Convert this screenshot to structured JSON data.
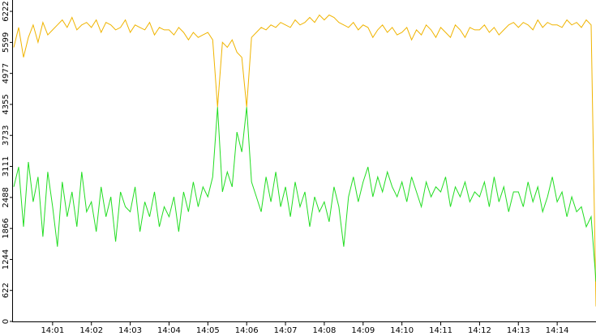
{
  "chart_data": {
    "type": "line",
    "x": [
      0,
      0.125,
      0.25,
      0.375,
      0.5,
      0.625,
      0.75,
      0.875,
      1,
      1.125,
      1.25,
      1.375,
      1.5,
      1.625,
      1.75,
      1.875,
      2,
      2.125,
      2.25,
      2.375,
      2.5,
      2.625,
      2.75,
      2.875,
      3,
      3.125,
      3.25,
      3.375,
      3.5,
      3.625,
      3.75,
      3.875,
      4,
      4.125,
      4.25,
      4.375,
      4.5,
      4.625,
      4.75,
      4.875,
      5,
      5.125,
      5.25,
      5.375,
      5.5,
      5.625,
      5.75,
      5.875,
      6,
      6.125,
      6.25,
      6.375,
      6.5,
      6.625,
      6.75,
      6.875,
      7,
      7.125,
      7.25,
      7.375,
      7.5,
      7.625,
      7.75,
      7.875,
      8,
      8.125,
      8.25,
      8.375,
      8.5,
      8.625,
      8.75,
      8.875,
      9,
      9.125,
      9.25,
      9.375,
      9.5,
      9.625,
      9.75,
      9.875,
      10,
      10.125,
      10.25,
      10.375,
      10.5,
      10.625,
      10.75,
      10.875,
      11,
      11.125,
      11.25,
      11.375,
      11.5,
      11.625,
      11.75,
      11.875,
      12,
      12.125,
      12.25,
      12.375,
      12.5,
      12.625,
      12.75,
      12.875,
      13,
      13.125,
      13.25,
      13.375,
      13.5,
      13.625,
      13.75,
      13.875,
      14,
      14.125,
      14.25,
      14.375,
      14.5,
      14.625,
      14.75,
      14.875,
      15
    ],
    "series": [
      {
        "color": "#f0b400",
        "values": [
          5500,
          5900,
          5300,
          5700,
          5950,
          5600,
          6000,
          5750,
          5850,
          5950,
          6050,
          5900,
          6100,
          5850,
          5950,
          6000,
          5900,
          6050,
          5800,
          6000,
          5950,
          5850,
          5900,
          6050,
          5800,
          5950,
          5900,
          5850,
          6000,
          5750,
          5900,
          5850,
          5850,
          5750,
          5900,
          5800,
          5650,
          5800,
          5700,
          5750,
          5800,
          5650,
          4300,
          5600,
          5500,
          5650,
          5400,
          5300,
          4300,
          5700,
          5800,
          5900,
          5850,
          5950,
          5900,
          6000,
          5950,
          5900,
          6050,
          5950,
          6000,
          6100,
          6000,
          6150,
          6050,
          6150,
          6100,
          6000,
          5950,
          5900,
          6000,
          5850,
          5950,
          5900,
          5700,
          5850,
          5950,
          5800,
          5900,
          5750,
          5800,
          5900,
          5650,
          5850,
          5750,
          5950,
          5850,
          5700,
          5900,
          5800,
          5700,
          5950,
          5850,
          5700,
          5900,
          5850,
          5850,
          5950,
          5800,
          5900,
          5750,
          5850,
          5950,
          6000,
          5900,
          6000,
          5950,
          5850,
          6050,
          5900,
          6000,
          5950,
          5950,
          5900,
          6050,
          5950,
          6000,
          5900,
          6050,
          5950,
          300
        ]
      },
      {
        "color": "#22dd22",
        "values": [
          2700,
          3100,
          1900,
          3200,
          2400,
          2900,
          1700,
          3000,
          2300,
          1500,
          2800,
          2100,
          2600,
          1900,
          3000,
          2200,
          2400,
          1800,
          2700,
          2100,
          2500,
          1600,
          2600,
          2300,
          2200,
          2700,
          1800,
          2400,
          2100,
          2600,
          1900,
          2300,
          2100,
          2500,
          1800,
          2600,
          2200,
          2800,
          2300,
          2700,
          2500,
          2900,
          4300,
          2600,
          3000,
          2700,
          3800,
          3400,
          4300,
          2800,
          2500,
          2200,
          2900,
          2400,
          3000,
          2300,
          2700,
          2100,
          2800,
          2300,
          2600,
          1900,
          2500,
          2200,
          2400,
          2000,
          2700,
          2300,
          1500,
          2500,
          2900,
          2400,
          2800,
          3100,
          2500,
          2900,
          2600,
          3000,
          2700,
          2500,
          2800,
          2400,
          2900,
          2600,
          2300,
          2800,
          2500,
          2700,
          2600,
          2900,
          2300,
          2700,
          2500,
          2800,
          2400,
          2600,
          2500,
          2800,
          2300,
          2900,
          2400,
          2700,
          2200,
          2600,
          2600,
          2300,
          2800,
          2400,
          2700,
          2200,
          2500,
          2900,
          2400,
          2600,
          2100,
          2500,
          2200,
          2300,
          1900,
          2100,
          800
        ]
      }
    ],
    "xlim": [
      0,
      15
    ],
    "xticks": [
      {
        "value": 1,
        "label": "14:01"
      },
      {
        "value": 2,
        "label": "14:02"
      },
      {
        "value": 3,
        "label": "14:03"
      },
      {
        "value": 4,
        "label": "14:04"
      },
      {
        "value": 5,
        "label": "14:05"
      },
      {
        "value": 6,
        "label": "14:06"
      },
      {
        "value": 7,
        "label": "14:07"
      },
      {
        "value": 8,
        "label": "14:08"
      },
      {
        "value": 9,
        "label": "14:09"
      },
      {
        "value": 10,
        "label": "14:10"
      },
      {
        "value": 11,
        "label": "14:11"
      },
      {
        "value": 12,
        "label": "14:12"
      },
      {
        "value": 13,
        "label": "14:13"
      },
      {
        "value": 14,
        "label": "14:14"
      }
    ],
    "ylim": [
      0,
      6450
    ],
    "yticks": [
      0,
      622,
      1244,
      1866,
      2488,
      3111,
      3733,
      4355,
      4977,
      5599,
      6222
    ]
  }
}
